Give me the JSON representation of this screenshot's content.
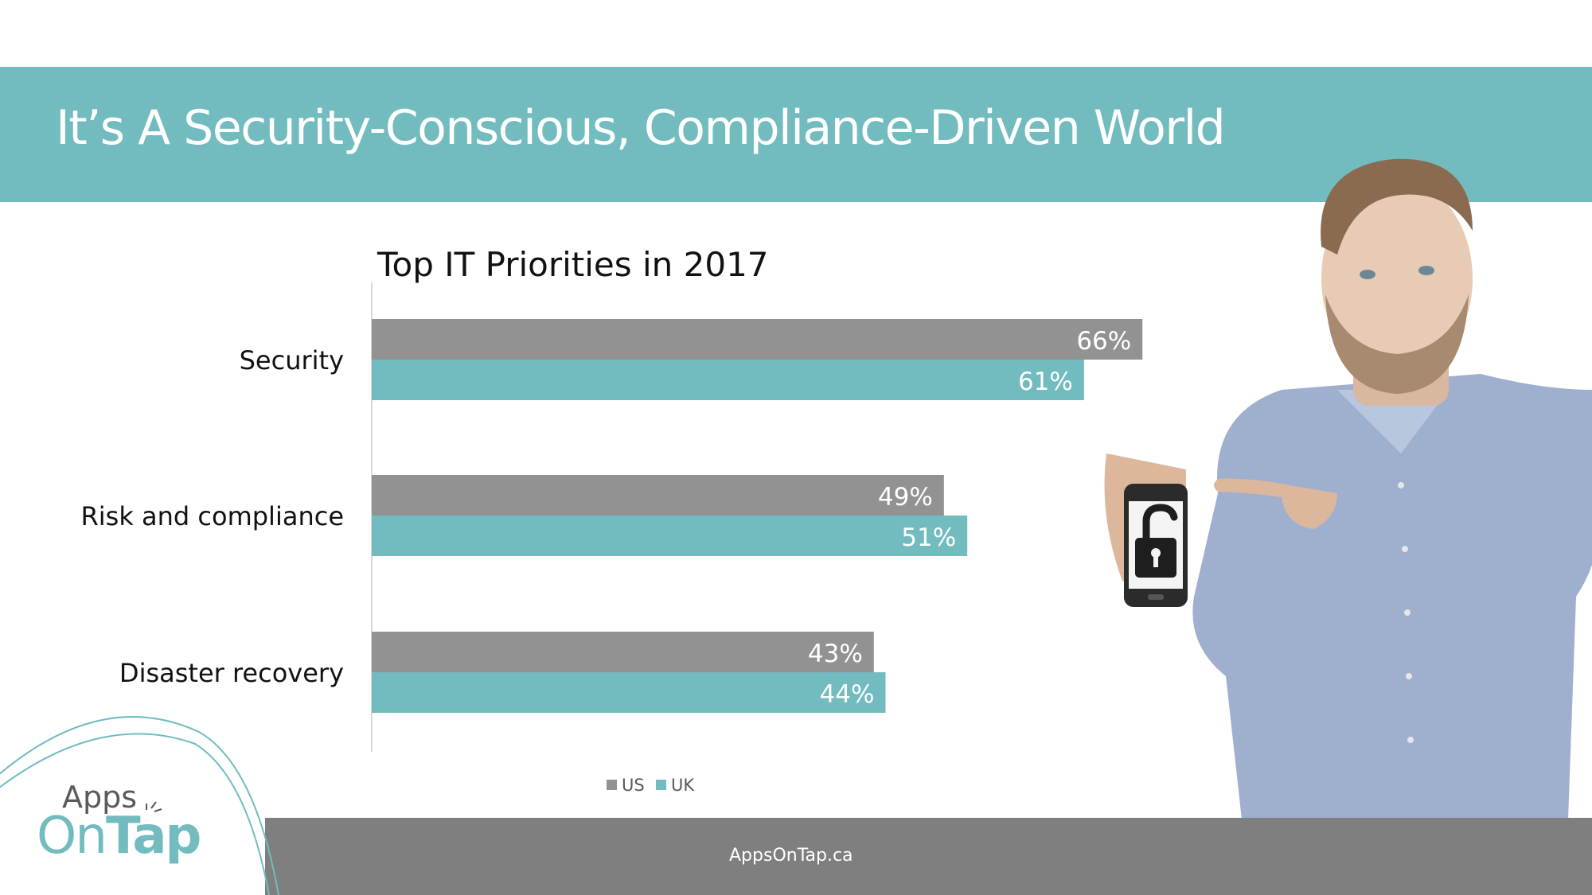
{
  "slide": {
    "title": "It’s A Security-Conscious, Compliance-Driven World",
    "footer_url": "AppsOnTap.ca",
    "logo_text": "Apps On Tap",
    "logo_line1": "Apps",
    "logo_line2_light": "On",
    "logo_line2_bold": "Tap"
  },
  "colors": {
    "header_teal": "#72bcbf",
    "footer_gray": "#7f7f7f",
    "us_gray": "#929292",
    "uk_teal": "#72bcbf"
  },
  "chart_data": {
    "type": "bar",
    "orientation": "horizontal",
    "title": "Top IT Priorities in 2017",
    "categories": [
      "Security",
      "Risk and compliance",
      "Disaster recovery"
    ],
    "series": [
      {
        "name": "US",
        "values": [
          66,
          49,
          43
        ],
        "labels": [
          "66%",
          "49%",
          "43%"
        ]
      },
      {
        "name": "UK",
        "values": [
          61,
          51,
          44
        ],
        "labels": [
          "61%",
          "51%",
          "44%"
        ]
      }
    ],
    "unit": "%",
    "xlim": [
      0,
      100
    ],
    "grid": false,
    "legend": "bottom",
    "xlabel": "",
    "ylabel": ""
  }
}
